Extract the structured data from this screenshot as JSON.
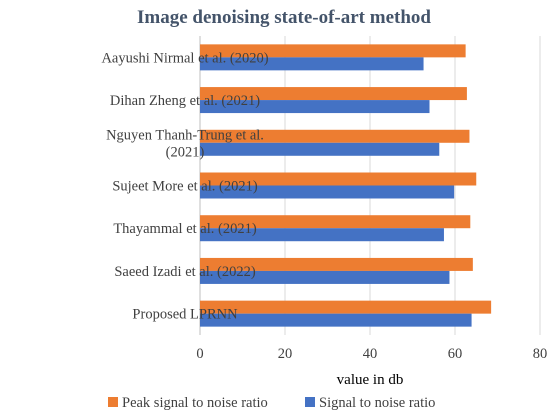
{
  "chart_data": {
    "type": "bar",
    "orientation": "horizontal",
    "title": "Image denoising state-of-art method",
    "xlabel": "value in db",
    "ylabel": "",
    "xlim": [
      0,
      80
    ],
    "xticks": [
      0,
      20,
      40,
      60,
      80
    ],
    "grid": true,
    "legend_position": "bottom",
    "categories": [
      [
        "Aayushi Nirmal et al. (2020)"
      ],
      [
        "Dihan Zheng et al. (2021)"
      ],
      [
        "Nguyen Thanh-Trung et al.",
        "(2021)"
      ],
      [
        "Sujeet More et al. (2021)"
      ],
      [
        "Thayammal et al. (2021)"
      ],
      [
        "Saeed Izadi et al. (2022)"
      ],
      [
        "Proposed LPRNN"
      ]
    ],
    "series": [
      {
        "name": "Peak signal to noise ratio",
        "color": "#ed7d31",
        "values": [
          62.5,
          62.8,
          63.4,
          65.0,
          63.6,
          64.2,
          68.5
        ]
      },
      {
        "name": "Signal to noise ratio",
        "color": "#4472c4",
        "values": [
          52.6,
          54.0,
          56.3,
          59.8,
          57.4,
          58.7,
          63.9
        ]
      }
    ]
  }
}
